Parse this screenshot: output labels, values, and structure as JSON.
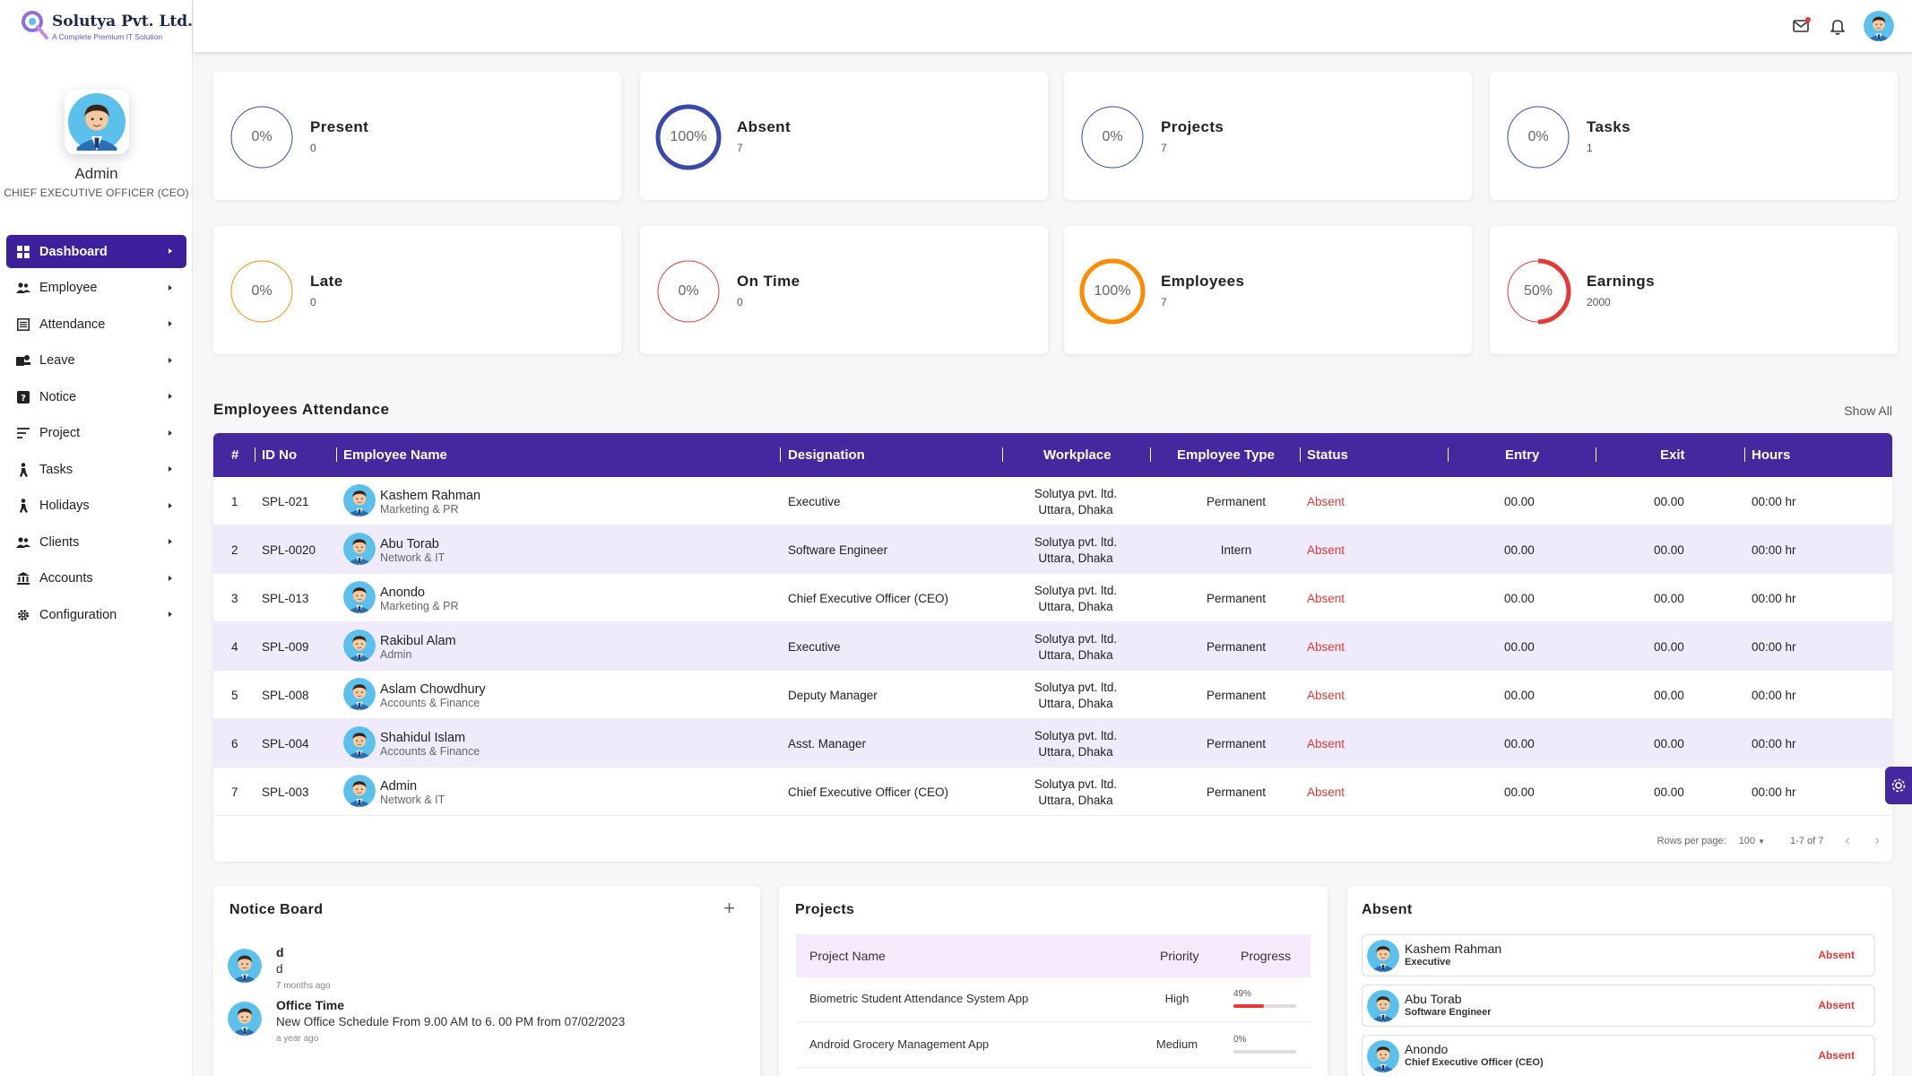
{
  "brand": {
    "name": "Solutya Pvt. Ltd.",
    "tagline": "A Complete Premium IT Solution"
  },
  "profile": {
    "name": "Admin",
    "role": "CHIEF EXECUTIVE OFFICER (CEO)"
  },
  "menu": [
    {
      "label": "Dashboard",
      "icon": "grid-icon",
      "active": true
    },
    {
      "label": "Employee",
      "icon": "users-icon"
    },
    {
      "label": "Attendance",
      "icon": "list-icon"
    },
    {
      "label": "Leave",
      "icon": "leave-icon"
    },
    {
      "label": "Notice",
      "icon": "question-icon"
    },
    {
      "label": "Project",
      "icon": "lines-icon"
    },
    {
      "label": "Tasks",
      "icon": "person-walk-icon"
    },
    {
      "label": "Holidays",
      "icon": "person-walk-icon"
    },
    {
      "label": "Clients",
      "icon": "users-icon"
    },
    {
      "label": "Accounts",
      "icon": "bank-icon"
    },
    {
      "label": "Configuration",
      "icon": "gear-icon"
    }
  ],
  "stats": [
    {
      "title": "Present",
      "count": "0",
      "percent_label": "0%",
      "percent": 0,
      "color": "#3949ab"
    },
    {
      "title": "Absent",
      "count": "7",
      "percent_label": "100%",
      "percent": 100,
      "color": "#3949ab"
    },
    {
      "title": "Projects",
      "count": "7",
      "percent_label": "0%",
      "percent": 0,
      "color": "#3949ab"
    },
    {
      "title": "Tasks",
      "count": "1",
      "percent_label": "0%",
      "percent": 0,
      "color": "#3949ab"
    },
    {
      "title": "Late",
      "count": "0",
      "percent_label": "0%",
      "percent": 0,
      "color": "#fb8c00"
    },
    {
      "title": "On Time",
      "count": "0",
      "percent_label": "0%",
      "percent": 0,
      "color": "#e53935"
    },
    {
      "title": "Employees",
      "count": "7",
      "percent_label": "100%",
      "percent": 100,
      "color": "#fb8c00"
    },
    {
      "title": "Earnings",
      "count": "2000",
      "percent_label": "50%",
      "percent": 50,
      "color": "#e53935"
    }
  ],
  "attendance": {
    "title": "Employees Attendance",
    "show_all": "Show All",
    "headers": {
      "num": "#",
      "id": "ID No",
      "name": "Employee Name",
      "designation": "Designation",
      "workplace": "Workplace",
      "type": "Employee Type",
      "status": "Status",
      "entry": "Entry",
      "exit": "Exit",
      "hours": "Hours"
    },
    "rows": [
      {
        "num": "1",
        "id": "SPL-021",
        "name": "Kashem Rahman",
        "dept": "Marketing & PR",
        "designation": "Executive",
        "wp1": "Solutya pvt. ltd.",
        "wp2": "Uttara, Dhaka",
        "type": "Permanent",
        "status": "Absent",
        "entry": "00.00",
        "exit": "00.00",
        "hours": "00:00 hr"
      },
      {
        "num": "2",
        "id": "SPL-0020",
        "name": "Abu Torab",
        "dept": "Network & IT",
        "designation": "Software Engineer",
        "wp1": "Solutya pvt. ltd.",
        "wp2": "Uttara, Dhaka",
        "type": "Intern",
        "status": "Absent",
        "entry": "00.00",
        "exit": "00.00",
        "hours": "00:00 hr"
      },
      {
        "num": "3",
        "id": "SPL-013",
        "name": "Anondo",
        "dept": "Marketing & PR",
        "designation": "Chief Executive Officer (CEO)",
        "wp1": "Solutya pvt. ltd.",
        "wp2": "Uttara, Dhaka",
        "type": "Permanent",
        "status": "Absent",
        "entry": "00.00",
        "exit": "00.00",
        "hours": "00:00 hr"
      },
      {
        "num": "4",
        "id": "SPL-009",
        "name": "Rakibul Alam",
        "dept": "Admin",
        "designation": "Executive",
        "wp1": "Solutya pvt. ltd.",
        "wp2": "Uttara, Dhaka",
        "type": "Permanent",
        "status": "Absent",
        "entry": "00.00",
        "exit": "00.00",
        "hours": "00:00 hr"
      },
      {
        "num": "5",
        "id": "SPL-008",
        "name": "Aslam Chowdhury",
        "dept": "Accounts & Finance",
        "designation": "Deputy Manager",
        "wp1": "Solutya pvt. ltd.",
        "wp2": "Uttara, Dhaka",
        "type": "Permanent",
        "status": "Absent",
        "entry": "00.00",
        "exit": "00.00",
        "hours": "00:00 hr"
      },
      {
        "num": "6",
        "id": "SPL-004",
        "name": "Shahidul Islam",
        "dept": "Accounts & Finance",
        "designation": "Asst. Manager",
        "wp1": "Solutya pvt. ltd.",
        "wp2": "Uttara, Dhaka",
        "type": "Permanent",
        "status": "Absent",
        "entry": "00.00",
        "exit": "00.00",
        "hours": "00:00 hr"
      },
      {
        "num": "7",
        "id": "SPL-003",
        "name": "Admin",
        "dept": "Network & IT",
        "designation": "Chief Executive Officer (CEO)",
        "wp1": "Solutya pvt. ltd.",
        "wp2": "Uttara, Dhaka",
        "type": "Permanent",
        "status": "Absent",
        "entry": "00.00",
        "exit": "00.00",
        "hours": "00:00 hr"
      }
    ],
    "pager": {
      "rows_label": "Rows per page:",
      "rows_value": "100",
      "range": "1-7 of 7"
    }
  },
  "notice_board": {
    "title": "Notice Board",
    "add_label": "+",
    "items": [
      {
        "title": "d",
        "desc": "d",
        "time": "7 months ago"
      },
      {
        "title": "Office Time",
        "desc": "New Office Schedule From 9.00 AM to 6. 00 PM from 07/02/2023",
        "time": "a year ago"
      }
    ]
  },
  "projects": {
    "title": "Projects",
    "headers": {
      "name": "Project Name",
      "priority": "Priority",
      "progress": "Progress"
    },
    "rows": [
      {
        "name": "Biometric Student Attendance System App",
        "priority": "High",
        "progress_label": "49%",
        "progress": 49
      },
      {
        "name": "Android Grocery Management App",
        "priority": "Medium",
        "progress_label": "0%",
        "progress": 0
      }
    ]
  },
  "absent": {
    "title": "Absent",
    "items": [
      {
        "name": "Kashem Rahman",
        "role": "Executive",
        "status": "Absent"
      },
      {
        "name": "Abu Torab",
        "role": "Software Engineer",
        "status": "Absent"
      },
      {
        "name": "Anondo",
        "role": "Chief Executive Officer (CEO)",
        "status": "Absent"
      }
    ]
  }
}
